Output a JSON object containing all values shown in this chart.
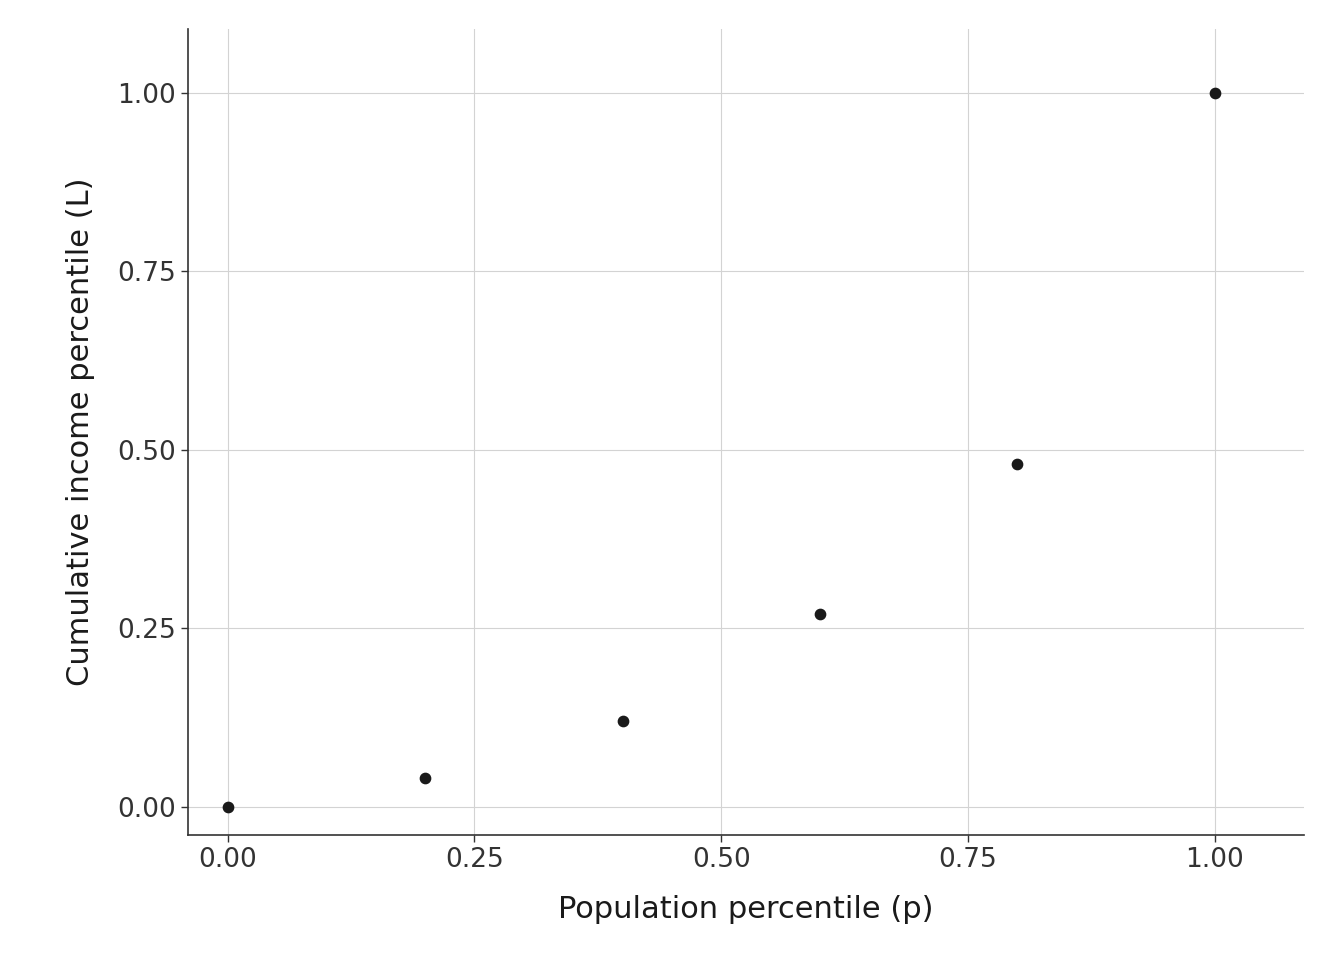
{
  "x": [
    0.0,
    0.2,
    0.4,
    0.6,
    0.8,
    1.0
  ],
  "y": [
    0.0,
    0.04,
    0.12,
    0.27,
    0.48,
    1.0
  ],
  "xlabel": "Population percentile (p)",
  "ylabel": "Cumulative income percentile (L)",
  "xlim": [
    -0.04,
    1.09
  ],
  "ylim": [
    -0.04,
    1.09
  ],
  "xticks": [
    0.0,
    0.25,
    0.5,
    0.75,
    1.0
  ],
  "yticks": [
    0.0,
    0.25,
    0.5,
    0.75,
    1.0
  ],
  "marker_color": "#1a1a1a",
  "marker_size": 55,
  "grid_color": "#d3d3d3",
  "background_color": "#ffffff",
  "axis_label_fontsize": 22,
  "tick_fontsize": 19,
  "spine_color": "#333333",
  "tick_color": "#333333",
  "label_color": "#1a1a1a"
}
